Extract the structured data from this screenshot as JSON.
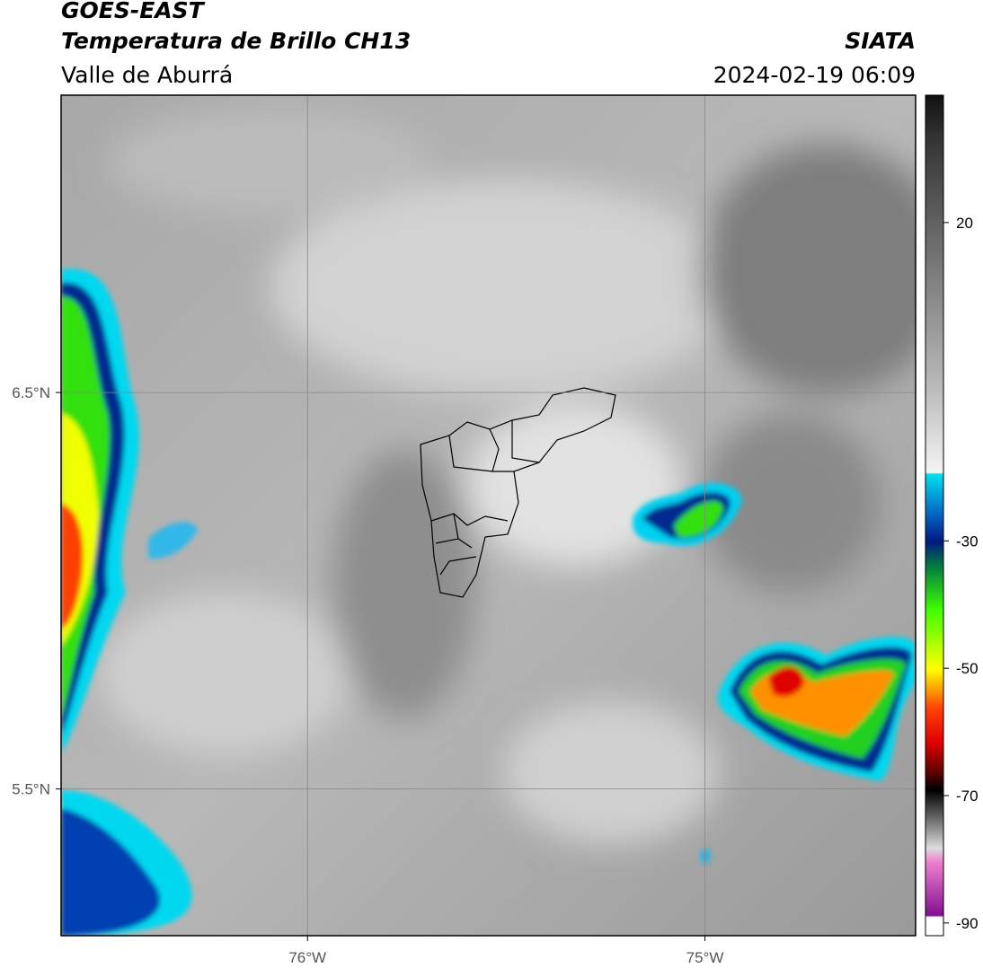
{
  "header": {
    "title": "GOES-EAST",
    "subtitle": "Temperatura de Brillo CH13",
    "region": "Valle de Aburrá",
    "source": "SIATA",
    "datetime": "2024-02-19 06:09"
  },
  "map": {
    "xlim": [
      -76.62,
      -74.47
    ],
    "ylim": [
      5.13,
      7.25
    ],
    "xticks": [
      {
        "value": -76,
        "label": "76°W"
      },
      {
        "value": -75,
        "label": "75°W"
      }
    ],
    "yticks": [
      {
        "value": 6.5,
        "label": "6.5°N"
      },
      {
        "value": 5.5,
        "label": "5.5°N"
      }
    ],
    "grid": true
  },
  "colorbar": {
    "lim": [
      -92,
      40
    ],
    "ticks": [
      20,
      -30,
      -50,
      -70,
      -90
    ]
  }
}
